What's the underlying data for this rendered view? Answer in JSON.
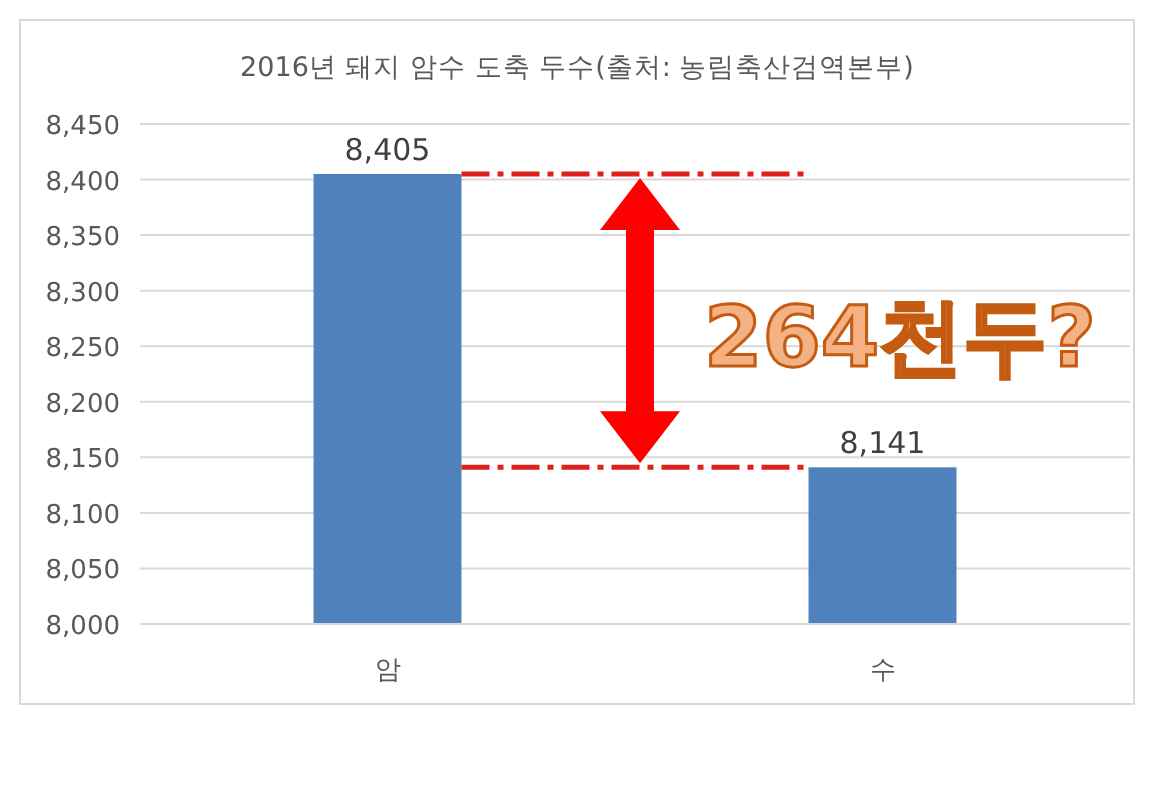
{
  "chart_data": {
    "type": "bar",
    "title": "2016년 돼지 암수 도축 두수(출처: 농림축산검역본부)",
    "categories": [
      "암",
      "수"
    ],
    "values": [
      8405,
      8141
    ],
    "color": "#4f81bd",
    "ylim": [
      8000,
      8450
    ],
    "yticks": [
      {
        "value": 8000,
        "label": "8,000"
      },
      {
        "value": 8050,
        "label": "8,050"
      },
      {
        "value": 8100,
        "label": "8,100"
      },
      {
        "value": 8150,
        "label": "8,150"
      },
      {
        "value": 8200,
        "label": "8,200"
      },
      {
        "value": 8250,
        "label": "8,250"
      },
      {
        "value": 8300,
        "label": "8,300"
      },
      {
        "value": 8350,
        "label": "8,350"
      },
      {
        "value": 8400,
        "label": "8,400"
      },
      {
        "value": 8450,
        "label": "8,450"
      }
    ],
    "grid": "y",
    "value_labels": [
      "8,405",
      "8,141"
    ],
    "ref_lines": [
      {
        "axis": "y",
        "value": 8405,
        "color": "#e0201c",
        "line_style": "dashed"
      },
      {
        "axis": "y",
        "value": 8141,
        "color": "#e0201c",
        "line_style": "dashed"
      }
    ],
    "annotations": [
      "264천두?"
    ]
  }
}
